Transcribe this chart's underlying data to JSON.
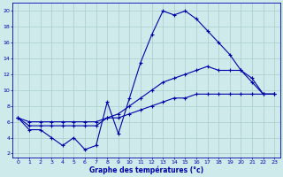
{
  "xlabel": "Graphe des températures (°c)",
  "bg_color": "#ceeaea",
  "grid_color": "#aacccc",
  "line_color": "#0000aa",
  "xlim": [
    -0.5,
    23.5
  ],
  "ylim": [
    1.5,
    21
  ],
  "yticks": [
    2,
    4,
    6,
    8,
    10,
    12,
    14,
    16,
    18,
    20
  ],
  "xticks": [
    0,
    1,
    2,
    3,
    4,
    5,
    6,
    7,
    8,
    9,
    10,
    11,
    12,
    13,
    14,
    15,
    16,
    17,
    18,
    19,
    20,
    21,
    22,
    23
  ],
  "line1_x": [
    0,
    1,
    2,
    3,
    4,
    5,
    6,
    7,
    8,
    9,
    10,
    11,
    12,
    13,
    14,
    15,
    16,
    17,
    18,
    19,
    20,
    21,
    22,
    23
  ],
  "line1_y": [
    6.5,
    5.0,
    5.0,
    4.0,
    3.0,
    4.0,
    2.5,
    3.0,
    8.5,
    4.5,
    9.0,
    13.5,
    17.0,
    20.0,
    19.5,
    20.0,
    19.0,
    17.5,
    16.0,
    14.5,
    12.5,
    11.5,
    9.5,
    9.5
  ],
  "line2_x": [
    0,
    1,
    2,
    3,
    4,
    5,
    6,
    7,
    8,
    9,
    10,
    11,
    12,
    13,
    14,
    15,
    16,
    17,
    18,
    19,
    20,
    21,
    22,
    23
  ],
  "line2_y": [
    6.5,
    5.5,
    5.5,
    5.5,
    5.5,
    5.5,
    5.5,
    5.5,
    6.5,
    7.0,
    8.0,
    9.0,
    10.0,
    11.0,
    11.5,
    12.0,
    12.5,
    13.0,
    12.5,
    12.5,
    12.5,
    11.0,
    9.5,
    9.5
  ],
  "line3_x": [
    0,
    1,
    2,
    3,
    4,
    5,
    6,
    7,
    8,
    9,
    10,
    11,
    12,
    13,
    14,
    15,
    16,
    17,
    18,
    19,
    20,
    21,
    22,
    23
  ],
  "line3_y": [
    6.5,
    6.0,
    6.0,
    6.0,
    6.0,
    6.0,
    6.0,
    6.0,
    6.5,
    6.5,
    7.0,
    7.5,
    8.0,
    8.5,
    9.0,
    9.0,
    9.5,
    9.5,
    9.5,
    9.5,
    9.5,
    9.5,
    9.5,
    9.5
  ]
}
